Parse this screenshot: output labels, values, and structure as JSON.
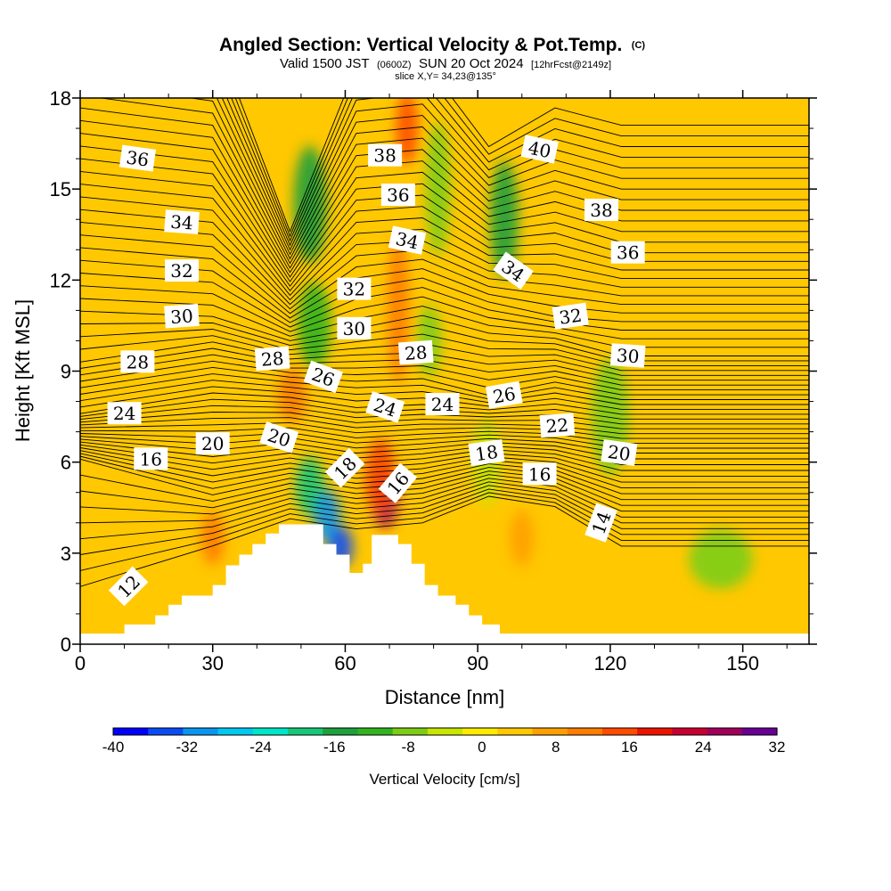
{
  "header": {
    "title": "Angled Section: Vertical Velocity & Pot.Temp.",
    "title_suffix": "(C)",
    "valid_prefix": "Valid 1500 JST",
    "valid_utc": "(0600Z)",
    "valid_date": "SUN 20 Oct 2024",
    "valid_fcst": "[12hrFcst@2149z]",
    "slice": "slice X,Y= 34,23@135°"
  },
  "chart_data": {
    "type": "heatmap",
    "xlabel": "Distance [nm]",
    "ylabel": "Height [Kft MSL]",
    "xlim": [
      0,
      165
    ],
    "ylim": [
      0,
      18
    ],
    "x_ticks": [
      0,
      30,
      60,
      90,
      120,
      150
    ],
    "y_ticks": [
      0,
      3,
      6,
      9,
      12,
      15,
      18
    ],
    "grid": false,
    "terrain_kft": [
      [
        0,
        0.35
      ],
      [
        10,
        0.65
      ],
      [
        17,
        0.95
      ],
      [
        20,
        1.3
      ],
      [
        23,
        1.6
      ],
      [
        30,
        1.95
      ],
      [
        33,
        2.6
      ],
      [
        36,
        2.95
      ],
      [
        39,
        3.3
      ],
      [
        42,
        3.65
      ],
      [
        45,
        3.95
      ],
      [
        55,
        3.3
      ],
      [
        58,
        2.95
      ],
      [
        61,
        2.35
      ],
      [
        64,
        2.65
      ],
      [
        66,
        3.6
      ],
      [
        72,
        3.3
      ],
      [
        75,
        2.65
      ],
      [
        78,
        1.95
      ],
      [
        81,
        1.6
      ],
      [
        85,
        1.3
      ],
      [
        88,
        0.95
      ],
      [
        91,
        0.65
      ],
      [
        95,
        0.35
      ],
      [
        165,
        0.35
      ]
    ],
    "colorbar": {
      "label": "Vertical Velocity [cm/s]",
      "tick_labels": [
        "-40",
        "-32",
        "-24",
        "-16",
        "-8",
        "0",
        "8",
        "16",
        "24",
        "32"
      ],
      "levels": [
        -40,
        -36,
        -32,
        -28,
        -24,
        -20,
        -16,
        -12,
        -8,
        -4,
        0,
        4,
        8,
        12,
        16,
        20,
        24,
        28,
        32
      ],
      "colors": [
        "#0000ff",
        "#0a4df5",
        "#0a96f0",
        "#00c8f0",
        "#00e6c8",
        "#14c878",
        "#1ea03c",
        "#32b41e",
        "#7dcd14",
        "#c8e600",
        "#ffeb00",
        "#ffc800",
        "#ffa000",
        "#ff7d00",
        "#ff4b00",
        "#eb1400",
        "#c80032",
        "#a0005a",
        "#690096"
      ]
    },
    "velocity_features": [
      {
        "x": 52,
        "y": 14.5,
        "w": 5,
        "h": 3.5,
        "value": -14
      },
      {
        "x": 53,
        "y": 10.5,
        "w": 5,
        "h": 2.5,
        "value": -10
      },
      {
        "x": 48,
        "y": 8.2,
        "w": 4,
        "h": 1.4,
        "value": 14
      },
      {
        "x": 52,
        "y": 5.2,
        "w": 4,
        "h": 1.6,
        "value": -20
      },
      {
        "x": 56,
        "y": 4.2,
        "w": 3.5,
        "h": 1.4,
        "value": -30
      },
      {
        "x": 59,
        "y": 3.2,
        "w": 3,
        "h": 1.0,
        "value": -34
      },
      {
        "x": 69,
        "y": 4.8,
        "w": 3.5,
        "h": 1.6,
        "value": 28
      },
      {
        "x": 68,
        "y": 5.5,
        "w": 4.5,
        "h": 2.2,
        "value": 16
      },
      {
        "x": 72,
        "y": 11,
        "w": 2.5,
        "h": 4.5,
        "value": 14
      },
      {
        "x": 74,
        "y": 17,
        "w": 2.5,
        "h": 2.0,
        "value": 18
      },
      {
        "x": 96,
        "y": 14,
        "w": 4,
        "h": 3.5,
        "value": -14
      },
      {
        "x": 81,
        "y": 15,
        "w": 3,
        "h": 4.0,
        "value": -6
      },
      {
        "x": 79,
        "y": 10,
        "w": 3,
        "h": 2.0,
        "value": -6
      },
      {
        "x": 92,
        "y": 6,
        "w": 4,
        "h": 2.5,
        "value": -4
      },
      {
        "x": 120,
        "y": 7.5,
        "w": 6,
        "h": 3.5,
        "value": -6
      },
      {
        "x": 145,
        "y": 2.8,
        "w": 12,
        "h": 1.6,
        "value": -6
      },
      {
        "x": 30,
        "y": 3.5,
        "w": 3,
        "h": 1.4,
        "value": 12
      },
      {
        "x": 100,
        "y": 3.5,
        "w": 3,
        "h": 1.5,
        "value": 10
      },
      {
        "x": 132,
        "y": 4.5,
        "w": 6,
        "h": 2.0,
        "value": 6
      },
      {
        "x": 40,
        "y": 14,
        "w": 4,
        "h": 3.5,
        "value": 4
      },
      {
        "x": 110,
        "y": 12,
        "w": 5,
        "h": 3.5,
        "value": 4
      }
    ],
    "theta_labels": [
      {
        "text": "36",
        "x": 13,
        "y": 16.0,
        "angle": 8
      },
      {
        "text": "34",
        "x": 23,
        "y": 13.9,
        "angle": 4
      },
      {
        "text": "32",
        "x": 23,
        "y": 12.3,
        "angle": 0
      },
      {
        "text": "30",
        "x": 23,
        "y": 10.8,
        "angle": -4
      },
      {
        "text": "28",
        "x": 13,
        "y": 9.3,
        "angle": 0
      },
      {
        "text": "24",
        "x": 10,
        "y": 7.6,
        "angle": 0
      },
      {
        "text": "16",
        "x": 16,
        "y": 6.1,
        "angle": 0
      },
      {
        "text": "20",
        "x": 30,
        "y": 6.6,
        "angle": 0
      },
      {
        "text": "12",
        "x": 11,
        "y": 1.9,
        "angle": -45
      },
      {
        "text": "28",
        "x": 43.5,
        "y": 9.4,
        "angle": -4
      },
      {
        "text": "26",
        "x": 55,
        "y": 8.8,
        "angle": 20
      },
      {
        "text": "20",
        "x": 45,
        "y": 6.8,
        "angle": 18
      },
      {
        "text": "18",
        "x": 60,
        "y": 5.8,
        "angle": -45
      },
      {
        "text": "16",
        "x": 72,
        "y": 5.3,
        "angle": -50
      },
      {
        "text": "24",
        "x": 69,
        "y": 7.8,
        "angle": 18
      },
      {
        "text": "38",
        "x": 69,
        "y": 16.1,
        "angle": 0
      },
      {
        "text": "36",
        "x": 72,
        "y": 14.8,
        "angle": 0
      },
      {
        "text": "34",
        "x": 74,
        "y": 13.3,
        "angle": 12
      },
      {
        "text": "32",
        "x": 62,
        "y": 11.7,
        "angle": 0
      },
      {
        "text": "30",
        "x": 62,
        "y": 10.4,
        "angle": 0
      },
      {
        "text": "28",
        "x": 76,
        "y": 9.6,
        "angle": -4
      },
      {
        "text": "24",
        "x": 82,
        "y": 7.9,
        "angle": 0
      },
      {
        "text": "26",
        "x": 96,
        "y": 8.2,
        "angle": -10
      },
      {
        "text": "18",
        "x": 92,
        "y": 6.3,
        "angle": -8
      },
      {
        "text": "40",
        "x": 104,
        "y": 16.3,
        "angle": 12
      },
      {
        "text": "38",
        "x": 118,
        "y": 14.3,
        "angle": 0
      },
      {
        "text": "36",
        "x": 124,
        "y": 12.9,
        "angle": 0
      },
      {
        "text": "34",
        "x": 98,
        "y": 12.3,
        "angle": 35
      },
      {
        "text": "32",
        "x": 111,
        "y": 10.8,
        "angle": -8
      },
      {
        "text": "30",
        "x": 124,
        "y": 9.5,
        "angle": 4
      },
      {
        "text": "22",
        "x": 108,
        "y": 7.2,
        "angle": -4
      },
      {
        "text": "20",
        "x": 122,
        "y": 6.3,
        "angle": 8
      },
      {
        "text": "16",
        "x": 104,
        "y": 5.6,
        "angle": 0
      },
      {
        "text": "14",
        "x": 118,
        "y": 4.0,
        "angle": -70
      }
    ]
  }
}
